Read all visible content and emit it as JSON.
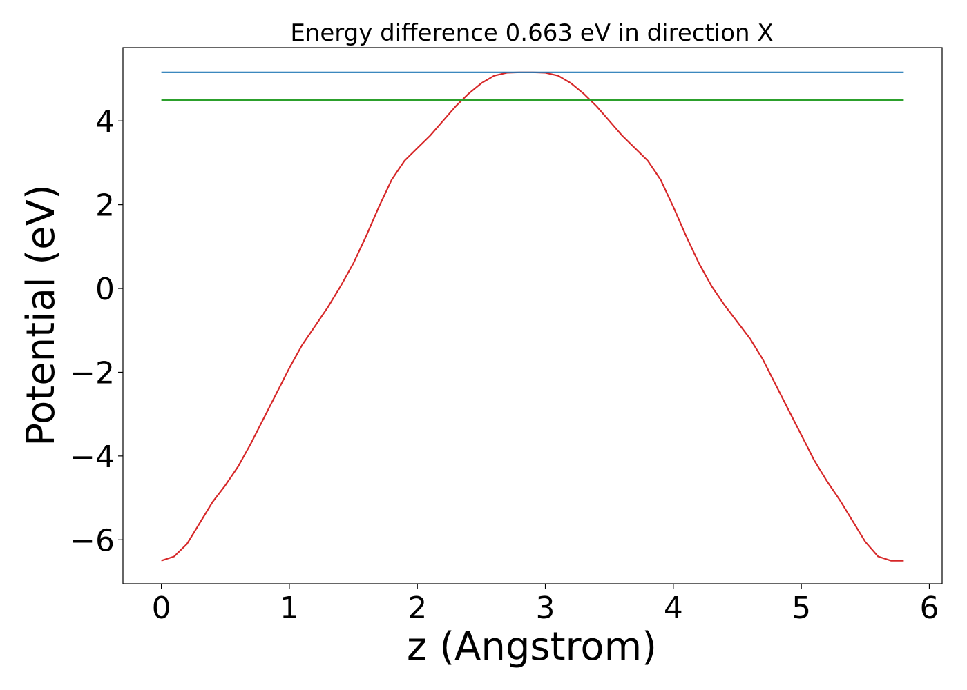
{
  "chart_data": {
    "type": "line",
    "title": "Energy difference 0.663 eV in direction X",
    "xlabel": "z (Angstrom)",
    "ylabel": "Potential (eV)",
    "xlim": [
      -0.3,
      6.1
    ],
    "ylim": [
      -7.05,
      5.75
    ],
    "x_ticks": [
      {
        "value": 0,
        "label": "0"
      },
      {
        "value": 1,
        "label": "1"
      },
      {
        "value": 2,
        "label": "2"
      },
      {
        "value": 3,
        "label": "3"
      },
      {
        "value": 4,
        "label": "4"
      },
      {
        "value": 5,
        "label": "5"
      },
      {
        "value": 6,
        "label": "6"
      }
    ],
    "y_ticks": [
      {
        "value": -6,
        "label": "−6"
      },
      {
        "value": -4,
        "label": "−4"
      },
      {
        "value": -2,
        "label": "−2"
      },
      {
        "value": 0,
        "label": "0"
      },
      {
        "value": 2,
        "label": "2"
      },
      {
        "value": 4,
        "label": "4"
      }
    ],
    "grid": false,
    "series": [
      {
        "color": "#d62728",
        "x": [
          0,
          0.1,
          0.2,
          0.3,
          0.4,
          0.5,
          0.6,
          0.7,
          0.8,
          0.9,
          1.0,
          1.1,
          1.2,
          1.3,
          1.4,
          1.5,
          1.6,
          1.7,
          1.8,
          1.9,
          2.0,
          2.1,
          2.2,
          2.3,
          2.4,
          2.5,
          2.6,
          2.7,
          2.8,
          2.9,
          3.0,
          3.1,
          3.2,
          3.3,
          3.4,
          3.5,
          3.6,
          3.7,
          3.8,
          3.9,
          4.0,
          4.1,
          4.2,
          4.3,
          4.4,
          4.5,
          4.6,
          4.7,
          4.8,
          4.9,
          5.0,
          5.1,
          5.2,
          5.3,
          5.4,
          5.5,
          5.6,
          5.7,
          5.8
        ],
        "y": [
          -6.5,
          -6.4,
          -6.1,
          -5.6,
          -5.1,
          -4.7,
          -4.25,
          -3.7,
          -3.1,
          -2.5,
          -1.9,
          -1.35,
          -0.9,
          -0.45,
          0.05,
          0.6,
          1.25,
          1.95,
          2.6,
          3.05,
          3.35,
          3.65,
          4.0,
          4.35,
          4.65,
          4.9,
          5.08,
          5.15,
          5.16,
          5.16,
          5.15,
          5.08,
          4.9,
          4.65,
          4.35,
          4.0,
          3.65,
          3.35,
          3.05,
          2.6,
          1.95,
          1.25,
          0.6,
          0.05,
          -0.4,
          -0.8,
          -1.2,
          -1.7,
          -2.3,
          -2.9,
          -3.5,
          -4.1,
          -4.6,
          -5.05,
          -5.55,
          -6.05,
          -6.4,
          -6.5,
          -6.5
        ]
      },
      {
        "color": "#1f77b4",
        "x": [
          0,
          5.8
        ],
        "y": [
          5.16,
          5.16
        ]
      },
      {
        "color": "#2ca02c",
        "x": [
          0,
          5.8
        ],
        "y": [
          4.5,
          4.5
        ]
      }
    ]
  }
}
